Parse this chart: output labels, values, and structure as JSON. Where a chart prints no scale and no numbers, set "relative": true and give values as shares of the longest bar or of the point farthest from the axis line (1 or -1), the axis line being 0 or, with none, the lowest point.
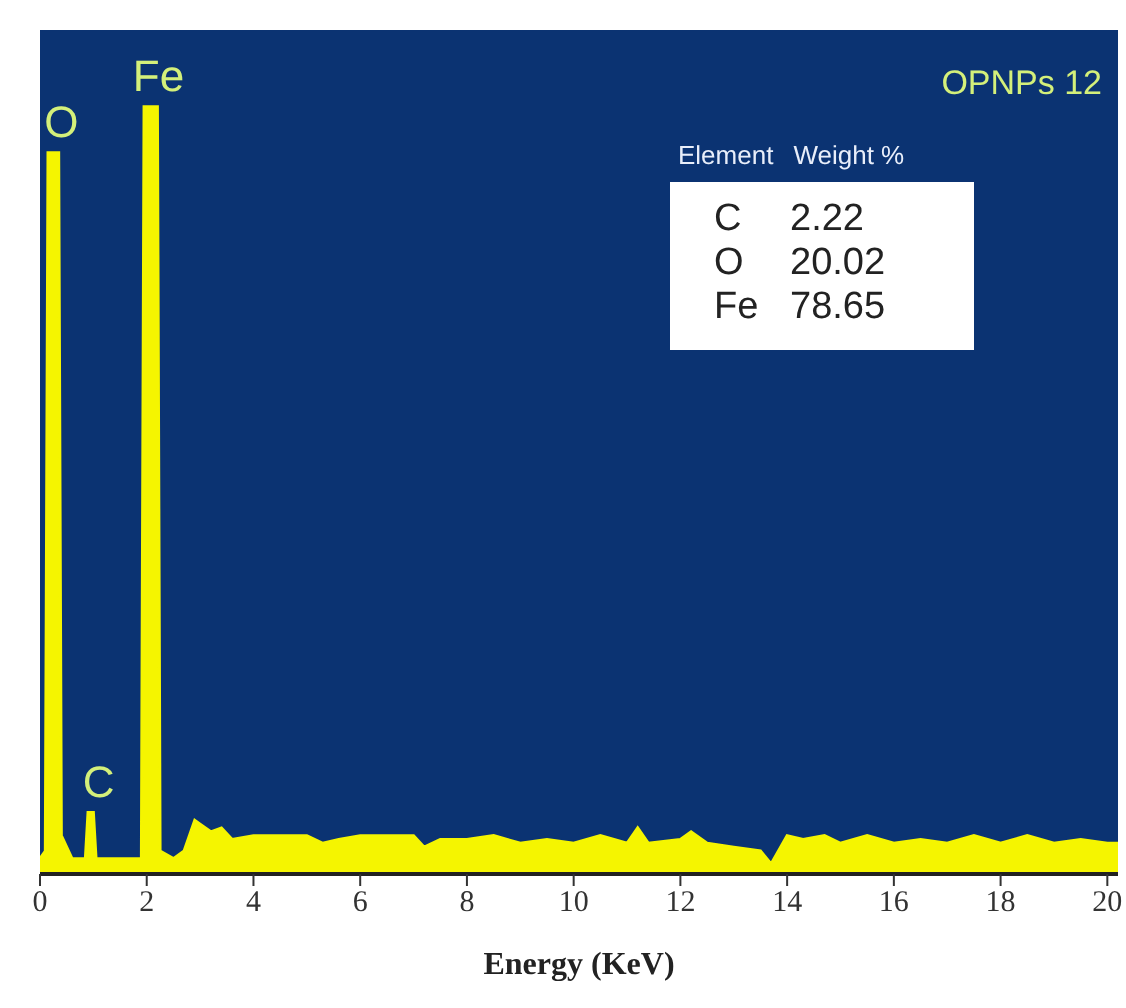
{
  "chart_data": {
    "type": "area",
    "title": "OPNPs 12",
    "xlabel": "Energy (KeV)",
    "relative": true,
    "color": "#f5f500",
    "x": [
      0,
      0.1,
      0.15,
      0.35,
      0.4,
      0.6,
      0.85,
      0.9,
      1.0,
      1.05,
      1.9,
      1.95,
      2.2,
      2.25,
      2.5,
      2.7,
      2.9,
      3.0,
      3.2,
      3.4,
      3.6,
      4.0,
      4.5,
      5.0,
      5.3,
      5.6,
      6.0,
      6.5,
      7.0,
      7.2,
      7.5,
      8.0,
      8.5,
      9.0,
      9.5,
      10.0,
      10.5,
      11.0,
      11.2,
      11.4,
      12.0,
      12.2,
      12.5,
      13.0,
      13.5,
      13.7,
      14.0,
      14.3,
      14.7,
      15.0,
      15.5,
      16.0,
      16.5,
      17.0,
      17.5,
      18.0,
      18.5,
      19.0,
      19.5,
      20.0,
      20.2
    ],
    "values": [
      0.02,
      0.03,
      0.94,
      0.94,
      0.05,
      0.02,
      0.02,
      0.08,
      0.08,
      0.02,
      0.02,
      1,
      1,
      0.03,
      0.02,
      0.03,
      0.07,
      0.065,
      0.055,
      0.06,
      0.045,
      0.05,
      0.05,
      0.05,
      0.04,
      0.045,
      0.05,
      0.05,
      0.05,
      0.035,
      0.045,
      0.045,
      0.05,
      0.04,
      0.045,
      0.04,
      0.05,
      0.04,
      0.06,
      0.04,
      0.045,
      0.055,
      0.04,
      0.035,
      0.03,
      0.013,
      0.05,
      0.045,
      0.05,
      0.04,
      0.05,
      0.04,
      0.045,
      0.04,
      0.05,
      0.04,
      0.05,
      0.04,
      0.045,
      0.04,
      0.04
    ],
    "xlim": [
      0,
      20.2
    ],
    "xticks": [
      0,
      2,
      4,
      6,
      8,
      10,
      12,
      14,
      16,
      18,
      20
    ],
    "annotations": [
      {
        "text": "O",
        "x": 0.25,
        "y": 0.94
      },
      {
        "text": "Fe",
        "x": 2.07,
        "y": 1
      },
      {
        "text": "C",
        "x": 0.95,
        "y": 0.08
      },
      "Element",
      "Weight %",
      "C",
      "2.22",
      "O",
      "20.02",
      "Fe",
      "78.65"
    ]
  }
}
